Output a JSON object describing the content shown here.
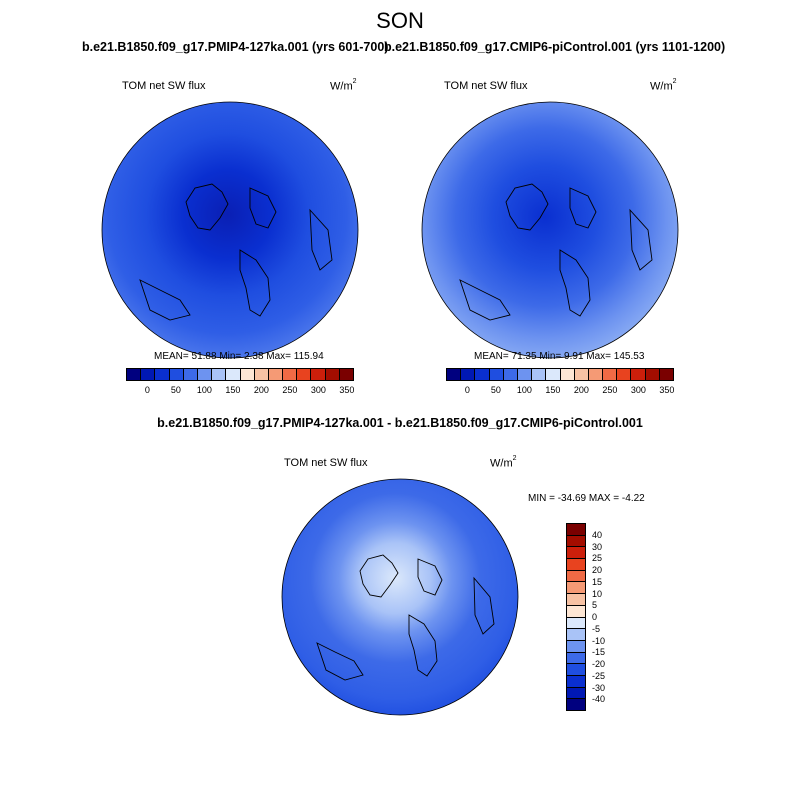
{
  "season": "SON",
  "panels": [
    {
      "title": "b.e21.B1850.f09_g17.PMIP4-127ka.001 (yrs 601-700)",
      "variable": "TOM net SW flux",
      "units_base": "W/m",
      "units_exp": "2",
      "stats": "MEAN=  51.88  Min=   2.38  Max= 115.94",
      "colorbar_ticks": [
        "0",
        "50",
        "100",
        "150",
        "200",
        "250",
        "300",
        "350"
      ]
    },
    {
      "title": "b.e21.B1850.f09_g17.CMIP6-piControl.001 (yrs 1101-1200)",
      "variable": "TOM net SW flux",
      "units_base": "W/m",
      "units_exp": "2",
      "stats": "MEAN=  71.35  Min=   9.91  Max= 145.53",
      "colorbar_ticks": [
        "0",
        "50",
        "100",
        "150",
        "200",
        "250",
        "300",
        "350"
      ]
    }
  ],
  "difference": {
    "title": "b.e21.B1850.f09_g17.PMIP4-127ka.001 - b.e21.B1850.f09_g17.CMIP6-piControl.001",
    "variable": "TOM net SW flux",
    "units_base": "W/m",
    "units_exp": "2",
    "stats": "MIN = -34.69 MAX =  -4.22",
    "colorbar_ticks": [
      "40",
      "30",
      "25",
      "20",
      "15",
      "10",
      "5",
      "0",
      "-5",
      "-10",
      "-15",
      "-20",
      "-25",
      "-30",
      "-40"
    ]
  },
  "colors": {
    "abs_scale": [
      "#00007f",
      "#0018b4",
      "#0a2fd0",
      "#1f4ee0",
      "#3d6ae8",
      "#6d93f0",
      "#a9c3f7",
      "#dbe8fb",
      "#fde6d4",
      "#f7c2a4",
      "#f59a75",
      "#f06a45",
      "#e8431f",
      "#cc1f0b",
      "#a30d00",
      "#7a0000"
    ],
    "diff_scale": [
      "#7a0000",
      "#a30d00",
      "#cc1f0b",
      "#e8431f",
      "#f06a45",
      "#f59a75",
      "#f7c2a4",
      "#fde6d4",
      "#dbe8fb",
      "#a9c3f7",
      "#6d93f0",
      "#3d6ae8",
      "#1f4ee0",
      "#0a2fd0",
      "#0018b4",
      "#00007f"
    ]
  }
}
